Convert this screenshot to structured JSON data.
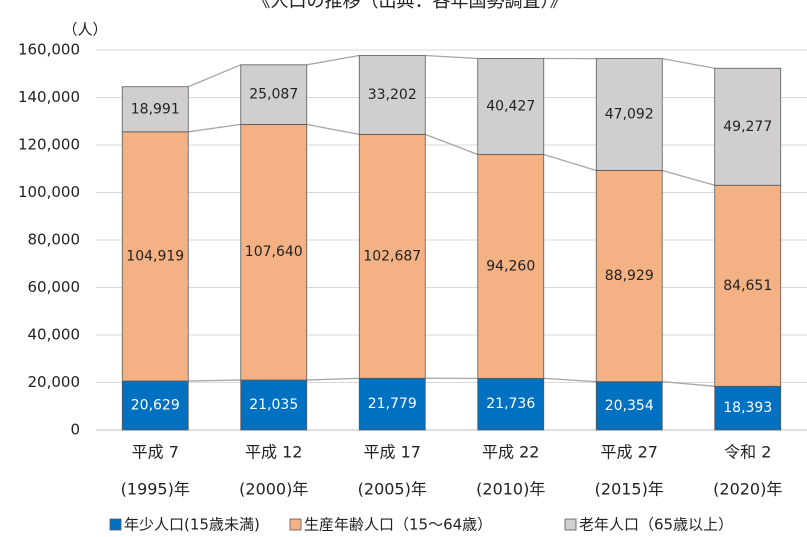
{
  "chart_data": {
    "type": "stacked_bar",
    "title": "《人口の推移（出典：各年国勢調査）》",
    "y_unit": "（人）",
    "categories": [
      [
        "平成 7",
        "(1995)年"
      ],
      [
        "平成 12",
        "(2000)年"
      ],
      [
        "平成 17",
        "(2005)年"
      ],
      [
        "平成 22",
        "(2010)年"
      ],
      [
        "平成 27",
        "(2015)年"
      ],
      [
        "令和 2",
        "(2020)年"
      ]
    ],
    "series": [
      {
        "name": "年少人口(15歳未満)",
        "color": "#0070c0",
        "label_color": "#ffffff",
        "values": [
          20629,
          21035,
          21779,
          21736,
          20354,
          18393
        ],
        "value_labels": [
          "20,629",
          "21,035",
          "21,779",
          "21,736",
          "20,354",
          "18,393"
        ]
      },
      {
        "name": "生産年齢人口（15～64歳）",
        "color": "#f4b183",
        "label_color": "#222222",
        "values": [
          104919,
          107640,
          102687,
          94260,
          88929,
          84651
        ],
        "value_labels": [
          "104,919",
          "107,640",
          "102,687",
          "94,260",
          "88,929",
          "84,651"
        ]
      },
      {
        "name": "老年人口（65歳以上）",
        "color": "#d0cece",
        "label_color": "#222222",
        "values": [
          18991,
          25087,
          33202,
          40427,
          47092,
          49277
        ],
        "value_labels": [
          "18,991",
          "25,087",
          "33,202",
          "40,427",
          "47,092",
          "49,277"
        ]
      }
    ],
    "ylim": [
      0,
      160000
    ],
    "yticks": [
      0,
      {
        "value": 20000,
        "label": "20,000"
      },
      {
        "value": 40000,
        "label": "40,000"
      },
      {
        "value": 60000,
        "label": "60,000"
      },
      {
        "value": 80000,
        "label": "80,000"
      },
      {
        "value": 100000,
        "label": "100,000"
      },
      {
        "value": 120000,
        "label": "120,000"
      },
      {
        "value": 140000,
        "label": "140,000"
      },
      {
        "value": 160000,
        "label": "160,000"
      }
    ],
    "grid": true
  }
}
